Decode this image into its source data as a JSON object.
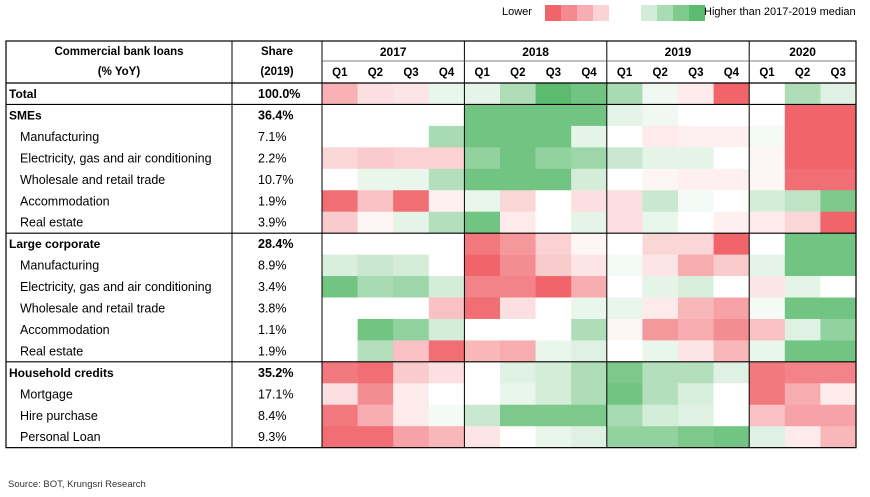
{
  "chart_data": {
    "type": "heatmap",
    "title": "",
    "header": {
      "label_line1": "Commercial bank loans",
      "label_line2": "(% YoY)",
      "share_line1": "Share",
      "share_line2": "(2019)"
    },
    "years": [
      "2017",
      "2018",
      "2019",
      "2020"
    ],
    "quarters": [
      "Q1",
      "Q2",
      "Q3",
      "Q4",
      "Q1",
      "Q2",
      "Q3",
      "Q4",
      "Q1",
      "Q2",
      "Q3",
      "Q4",
      "Q1",
      "Q2",
      "Q3"
    ],
    "legend": {
      "low_label": "Lower",
      "high_label": "Higher than 2017-2019 median",
      "colors": [
        "#f0646a",
        "#f48a8f",
        "#f7aeb2",
        "#fbd3d5",
        "#ffffff",
        "#ffffff",
        "#d3ecd8",
        "#a9dcb3",
        "#7fcb8d",
        "#5cbb6f"
      ]
    },
    "scale": {
      "min": -3,
      "max": 3,
      "low_color": "#f0646a",
      "mid_color": "#ffffff",
      "high_color": "#5cbb6f"
    },
    "rows": [
      {
        "label": "Total",
        "share": "100.0%",
        "category": true,
        "values": [
          -1.5,
          -0.6,
          -0.5,
          0.4,
          0.5,
          1.5,
          3.0,
          2.6,
          1.6,
          0.3,
          -0.4,
          -3.0,
          0.1,
          1.5,
          0.6
        ]
      },
      {
        "label": "SMEs",
        "share": "36.4%",
        "category": true,
        "values": [
          0.1,
          0.1,
          0.1,
          0.1,
          2.6,
          2.6,
          2.6,
          2.6,
          0.5,
          0.3,
          0.1,
          0.1,
          -0.1,
          -3.0,
          -3.0
        ]
      },
      {
        "label": "Manufacturing",
        "share": "7.1%",
        "category": false,
        "values": [
          0.1,
          0.1,
          0.1,
          1.6,
          2.6,
          2.6,
          2.6,
          0.5,
          -0.1,
          -0.4,
          -0.3,
          -0.3,
          0.2,
          -3.0,
          -3.0
        ]
      },
      {
        "label": "Electricity, gas and air conditioning",
        "share": "2.2%",
        "category": false,
        "values": [
          -0.8,
          -1.0,
          -0.9,
          -0.9,
          2.0,
          2.6,
          2.0,
          1.8,
          1.0,
          0.5,
          0.5,
          0.1,
          -0.2,
          -3.0,
          -3.0
        ]
      },
      {
        "label": "Wholesale and retail trade",
        "share": "10.7%",
        "category": false,
        "values": [
          0.1,
          0.4,
          0.4,
          1.4,
          2.6,
          2.6,
          2.6,
          0.8,
          -0.1,
          -0.2,
          -0.3,
          -0.3,
          -0.2,
          -2.8,
          -2.8
        ]
      },
      {
        "label": "Accommodation",
        "share": "1.9%",
        "category": false,
        "values": [
          -2.8,
          -1.2,
          -2.8,
          -0.3,
          0.4,
          -0.8,
          -0.1,
          -0.6,
          -0.6,
          1.0,
          0.2,
          0.1,
          0.8,
          1.2,
          2.4
        ]
      },
      {
        "label": "Real estate",
        "share": "3.9%",
        "category": false,
        "values": [
          -1.0,
          -0.2,
          0.5,
          1.4,
          2.6,
          -0.4,
          0.1,
          0.5,
          -0.6,
          0.4,
          0.1,
          -0.3,
          -0.4,
          -0.8,
          -3.0
        ]
      },
      {
        "label": "Large corporate",
        "share": "28.4%",
        "category": true,
        "values": [
          0.1,
          0.1,
          0.1,
          0.1,
          -2.6,
          -2.0,
          -0.9,
          -0.2,
          0.1,
          -0.8,
          -0.8,
          -3.0,
          0.1,
          2.6,
          2.6
        ]
      },
      {
        "label": "Manufacturing",
        "share": "8.9%",
        "category": false,
        "values": [
          0.7,
          1.0,
          0.8,
          0.1,
          -3.0,
          -2.2,
          -1.0,
          -0.5,
          0.2,
          -0.5,
          -1.6,
          -1.0,
          0.5,
          2.6,
          2.6
        ]
      },
      {
        "label": "Electricity, gas and air conditioning",
        "share": "3.4%",
        "category": false,
        "values": [
          2.6,
          1.6,
          1.8,
          0.8,
          -2.4,
          -2.4,
          -3.0,
          -1.6,
          0.1,
          0.5,
          0.7,
          0.1,
          -0.5,
          0.5,
          0.1
        ]
      },
      {
        "label": "Wholesale and retail trade",
        "share": "3.8%",
        "category": false,
        "values": [
          0.1,
          0.1,
          0.1,
          -1.2,
          -2.8,
          -0.6,
          0.1,
          0.4,
          0.4,
          -0.4,
          -1.4,
          -1.8,
          0.2,
          2.6,
          2.6
        ]
      },
      {
        "label": "Accommodation",
        "share": "1.1%",
        "category": false,
        "values": [
          0.1,
          2.6,
          2.0,
          0.8,
          0.1,
          0.1,
          0.1,
          1.5,
          -0.2,
          -2.0,
          -1.6,
          -2.2,
          -1.2,
          0.6,
          2.0
        ]
      },
      {
        "label": "Real estate",
        "share": "1.9%",
        "category": false,
        "values": [
          0.1,
          1.4,
          -1.2,
          -2.8,
          -1.4,
          -1.6,
          0.4,
          0.6,
          0.1,
          0.4,
          -0.5,
          -1.4,
          0.4,
          2.6,
          2.6
        ]
      },
      {
        "label": "Household credits",
        "share": "35.2%",
        "category": true,
        "values": [
          -2.6,
          -2.8,
          -1.0,
          -0.6,
          0.1,
          0.6,
          0.8,
          1.5,
          2.4,
          1.4,
          1.4,
          0.6,
          -2.6,
          -2.4,
          -2.4
        ]
      },
      {
        "label": "Mortgage",
        "share": "17.1%",
        "category": false,
        "values": [
          -0.6,
          -2.2,
          -0.4,
          0.1,
          0.1,
          0.4,
          0.8,
          1.5,
          2.6,
          1.4,
          0.7,
          0.1,
          -2.6,
          -1.6,
          -0.4
        ]
      },
      {
        "label": "Hire purchase",
        "share": "8.4%",
        "category": false,
        "values": [
          -2.6,
          -1.6,
          -0.4,
          0.2,
          1.0,
          2.4,
          2.4,
          2.4,
          1.6,
          0.8,
          0.6,
          0.1,
          -1.2,
          -1.8,
          -1.8
        ]
      },
      {
        "label": "Personal Loan",
        "share": "9.3%",
        "category": false,
        "values": [
          -2.8,
          -2.8,
          -1.8,
          -1.4,
          -0.5,
          0.1,
          0.4,
          0.6,
          2.0,
          2.0,
          2.4,
          2.6,
          0.6,
          -0.4,
          -1.4
        ]
      }
    ]
  },
  "source": "Source: BOT, Krungsri Research"
}
